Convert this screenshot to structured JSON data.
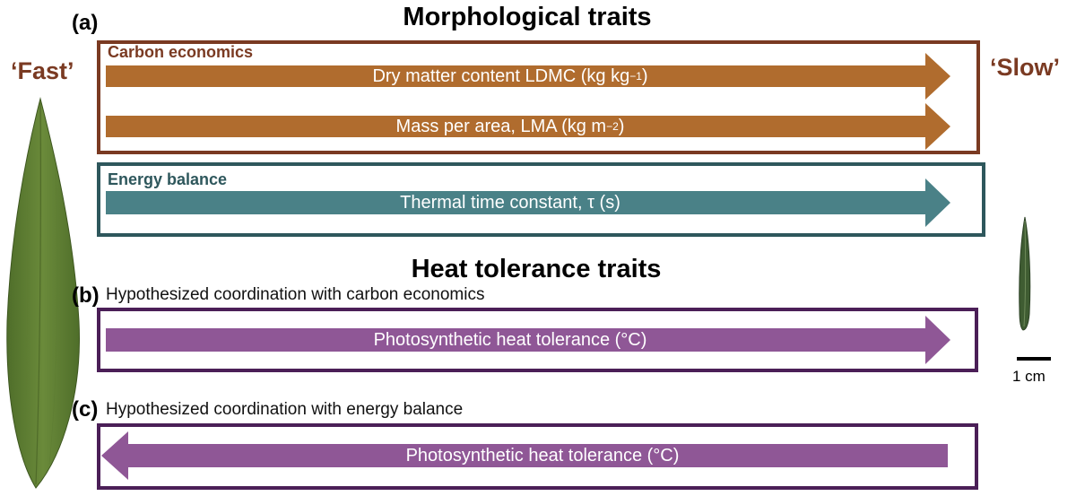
{
  "morph": {
    "panel": "(a)",
    "title": "Morphological traits",
    "fast": "‘Fast’",
    "slow": "‘Slow’",
    "carbon": {
      "title": "Carbon economics",
      "ldmc": {
        "text": "Dry matter content LDMC (kg kg",
        "sup": "−1",
        "end": ")"
      },
      "lma": {
        "text": "Mass per area, LMA (kg m",
        "sup": "−2",
        "end": ")"
      }
    },
    "energy": {
      "title": "Energy balance",
      "tau": "Thermal time constant, τ (s)"
    }
  },
  "heat": {
    "title": "Heat tolerance traits",
    "b": {
      "panel": "(b)",
      "desc": "Hypothesized coordination with carbon economics",
      "arrow": "Photosynthetic heat tolerance (°C)"
    },
    "c": {
      "panel": "(c)",
      "desc": "Hypothesized coordination with energy balance",
      "arrow": "Photosynthetic heat tolerance (°C)"
    }
  },
  "scale": "1 cm",
  "colors": {
    "carbon": "#b06c2e",
    "carbon_border": "#7a3a22",
    "energy": "#4a8187",
    "energy_border": "#2e575c",
    "heat": "#8f5796",
    "heat_border": "#4b1f57",
    "leaf": "#5b7b31"
  }
}
